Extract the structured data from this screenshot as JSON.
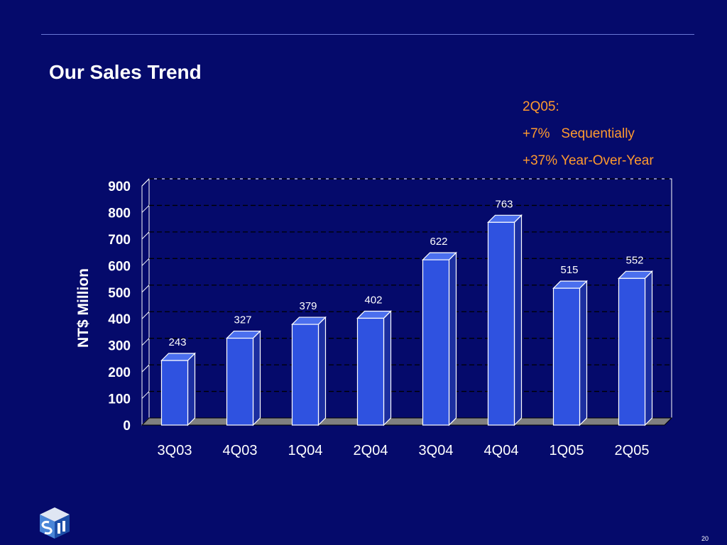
{
  "slide": {
    "title": "Our Sales Trend",
    "notes": [
      "2Q05:",
      "+7%   Sequentially",
      "+37% Year-Over-Year"
    ],
    "page_number": "20",
    "colors": {
      "background": "#050a6b",
      "note_text": "#ff9a2e",
      "bar_front": "#2f52e0",
      "bar_top": "#4b6fee",
      "bar_side": "#1c2fa0"
    },
    "logo_icon": "cube-logo-icon"
  },
  "chart_data": {
    "type": "bar",
    "categories": [
      "3Q03",
      "4Q03",
      "1Q04",
      "2Q04",
      "3Q04",
      "4Q04",
      "1Q05",
      "2Q05"
    ],
    "values": [
      243,
      327,
      379,
      402,
      622,
      763,
      515,
      552
    ],
    "data_labels": [
      "243",
      "327",
      "379",
      "402",
      "622",
      "763",
      "515",
      "552"
    ],
    "ylabel": "NT$ Million",
    "ylim": [
      0,
      900
    ],
    "yticks": [
      "0",
      "100",
      "200",
      "300",
      "400",
      "500",
      "600",
      "700",
      "800",
      "900"
    ],
    "grid": true,
    "style": "3d"
  }
}
